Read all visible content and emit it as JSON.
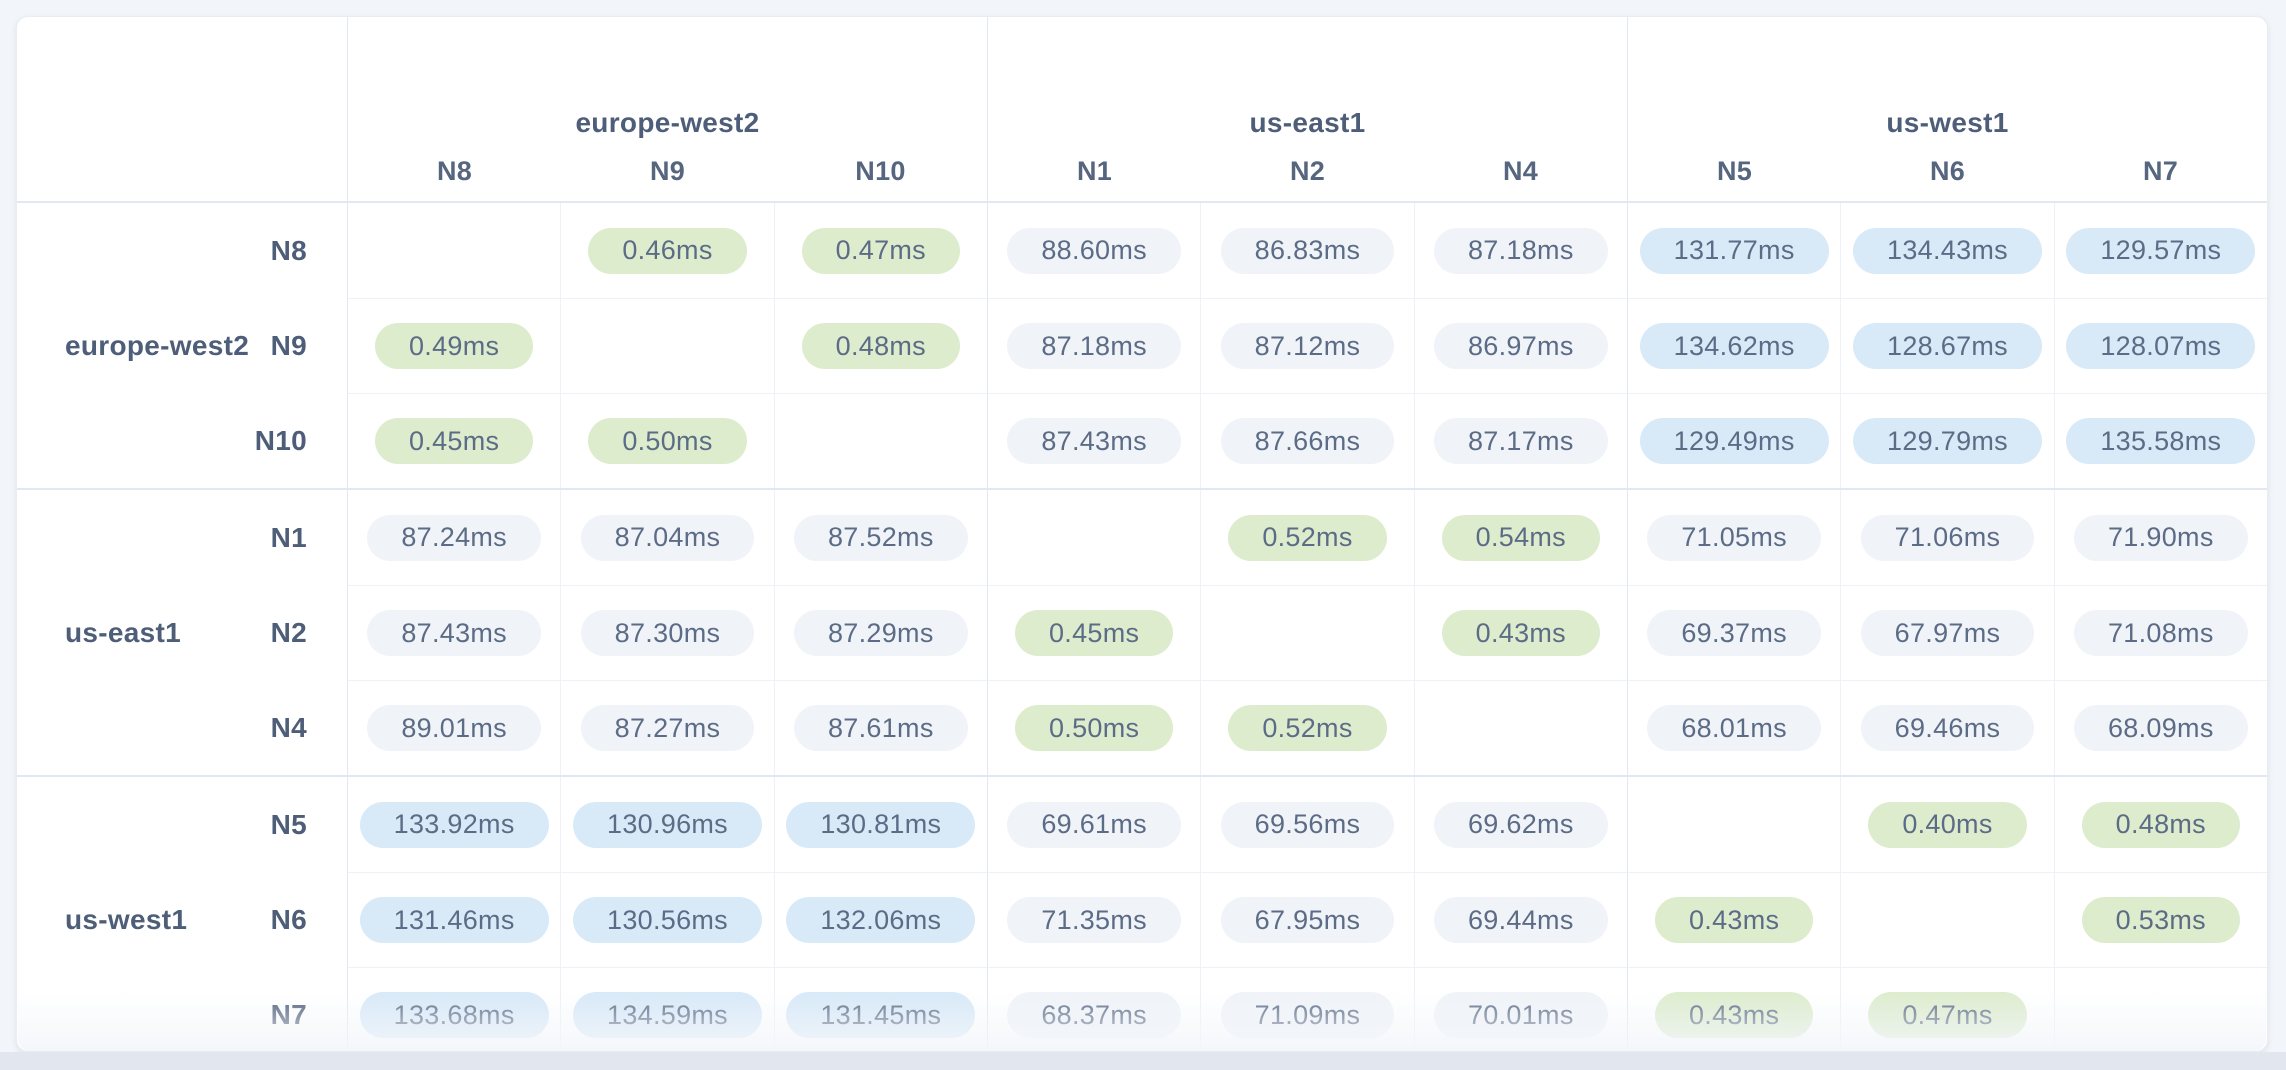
{
  "page": {
    "background": "#f2f5f9",
    "bottom_strip_color": "#e1e6ef"
  },
  "card": {
    "background": "#ffffff",
    "border_color": "#e8ecf3"
  },
  "colors": {
    "text": "#5c6c86",
    "label_text": "#4e5e79",
    "node_header_text": "#56667f",
    "pill_fast_bg": "#ddeccd",
    "pill_slow_bg": "#d8e9f8",
    "pill_medium_bg": "#f0f3f8",
    "border_inner": "#eef1f7",
    "border_group": "#e2e8f1"
  },
  "matrix": {
    "unit_suffix": "ms",
    "col_groups": [
      {
        "region": "europe-west2",
        "nodes": [
          "N8",
          "N9",
          "N10"
        ]
      },
      {
        "region": "us-east1",
        "nodes": [
          "N1",
          "N2",
          "N4"
        ]
      },
      {
        "region": "us-west1",
        "nodes": [
          "N5",
          "N6",
          "N7"
        ]
      }
    ],
    "row_groups": [
      {
        "region": "europe-west2",
        "rows": [
          {
            "node": "N8",
            "values": [
              "",
              "0.46ms",
              "0.47ms",
              "88.60ms",
              "86.83ms",
              "87.18ms",
              "131.77ms",
              "134.43ms",
              "129.57ms"
            ]
          },
          {
            "node": "N9",
            "values": [
              "0.49ms",
              "",
              "0.48ms",
              "87.18ms",
              "87.12ms",
              "86.97ms",
              "134.62ms",
              "128.67ms",
              "128.07ms"
            ]
          },
          {
            "node": "N10",
            "values": [
              "0.45ms",
              "0.50ms",
              "",
              "87.43ms",
              "87.66ms",
              "87.17ms",
              "129.49ms",
              "129.79ms",
              "135.58ms"
            ]
          }
        ]
      },
      {
        "region": "us-east1",
        "rows": [
          {
            "node": "N1",
            "values": [
              "87.24ms",
              "87.04ms",
              "87.52ms",
              "",
              "0.52ms",
              "0.54ms",
              "71.05ms",
              "71.06ms",
              "71.90ms"
            ]
          },
          {
            "node": "N2",
            "values": [
              "87.43ms",
              "87.30ms",
              "87.29ms",
              "0.45ms",
              "",
              "0.43ms",
              "69.37ms",
              "67.97ms",
              "71.08ms"
            ]
          },
          {
            "node": "N4",
            "values": [
              "89.01ms",
              "87.27ms",
              "87.61ms",
              "0.50ms",
              "0.52ms",
              "",
              "68.01ms",
              "69.46ms",
              "68.09ms"
            ]
          }
        ]
      },
      {
        "region": "us-west1",
        "rows": [
          {
            "node": "N5",
            "values": [
              "133.92ms",
              "130.96ms",
              "130.81ms",
              "69.61ms",
              "69.56ms",
              "69.62ms",
              "",
              "0.40ms",
              "0.48ms"
            ]
          },
          {
            "node": "N6",
            "values": [
              "131.46ms",
              "130.56ms",
              "132.06ms",
              "71.35ms",
              "67.95ms",
              "69.44ms",
              "0.43ms",
              "",
              "0.53ms"
            ]
          },
          {
            "node": "N7",
            "values": [
              "133.68ms",
              "134.59ms",
              "131.45ms",
              "68.37ms",
              "71.09ms",
              "70.01ms",
              "0.43ms",
              "0.47ms",
              ""
            ]
          }
        ]
      }
    ]
  }
}
